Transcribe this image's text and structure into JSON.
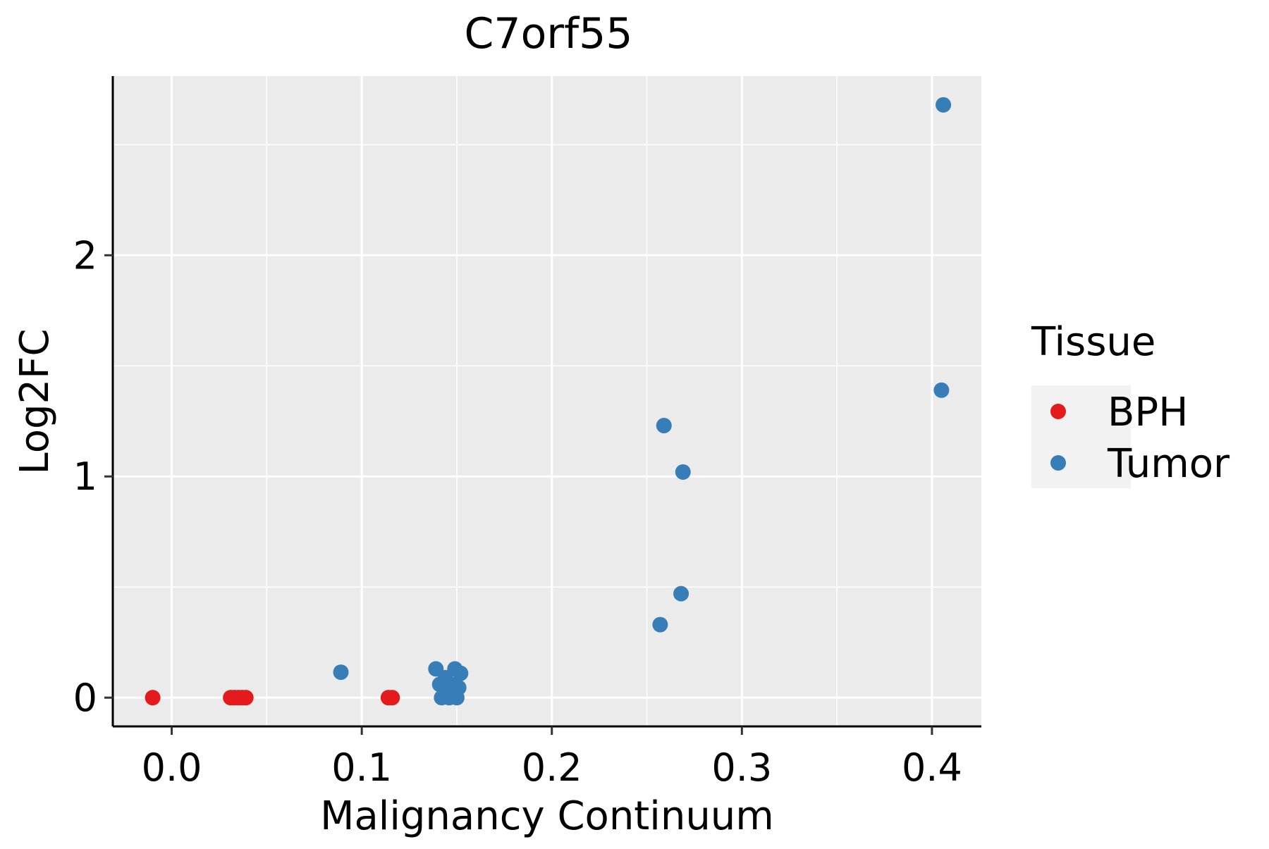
{
  "chart_data": {
    "type": "scatter",
    "title": "C7orf55",
    "xlabel": "Malignancy Continuum",
    "ylabel": "Log2FC",
    "xlim": [
      -0.031,
      0.426
    ],
    "ylim": [
      -0.13,
      2.81
    ],
    "x_ticks": [
      0.0,
      0.1,
      0.2,
      0.3,
      0.4
    ],
    "x_tick_labels": [
      "0.0",
      "0.1",
      "0.2",
      "0.3",
      "0.4"
    ],
    "y_ticks": [
      0,
      1,
      2
    ],
    "y_tick_labels": [
      "0",
      "1",
      "2"
    ],
    "grid": true,
    "legend": {
      "title": "Tissue",
      "position": "right",
      "entries": [
        {
          "label": "BPH",
          "color": "#E41A1C"
        },
        {
          "label": "Tumor",
          "color": "#377EB8"
        }
      ]
    },
    "series": [
      {
        "name": "BPH",
        "color": "#E41A1C",
        "points": [
          {
            "x": -0.01,
            "y": 0.0
          },
          {
            "x": 0.031,
            "y": 0.0
          },
          {
            "x": 0.033,
            "y": 0.0
          },
          {
            "x": 0.035,
            "y": 0.0
          },
          {
            "x": 0.037,
            "y": 0.0
          },
          {
            "x": 0.039,
            "y": 0.0
          },
          {
            "x": 0.114,
            "y": 0.0
          },
          {
            "x": 0.116,
            "y": 0.0
          }
        ]
      },
      {
        "name": "Tumor",
        "color": "#377EB8",
        "points": [
          {
            "x": 0.089,
            "y": 0.115
          },
          {
            "x": 0.139,
            "y": 0.13
          },
          {
            "x": 0.141,
            "y": 0.06
          },
          {
            "x": 0.142,
            "y": 0.0
          },
          {
            "x": 0.144,
            "y": 0.09
          },
          {
            "x": 0.145,
            "y": 0.04
          },
          {
            "x": 0.146,
            "y": 0.0
          },
          {
            "x": 0.147,
            "y": 0.06
          },
          {
            "x": 0.149,
            "y": 0.13
          },
          {
            "x": 0.15,
            "y": 0.0
          },
          {
            "x": 0.151,
            "y": 0.045
          },
          {
            "x": 0.152,
            "y": 0.11
          },
          {
            "x": 0.257,
            "y": 0.33
          },
          {
            "x": 0.259,
            "y": 1.23
          },
          {
            "x": 0.268,
            "y": 0.47
          },
          {
            "x": 0.269,
            "y": 1.02
          },
          {
            "x": 0.405,
            "y": 1.39
          },
          {
            "x": 0.406,
            "y": 2.68
          }
        ]
      }
    ]
  }
}
